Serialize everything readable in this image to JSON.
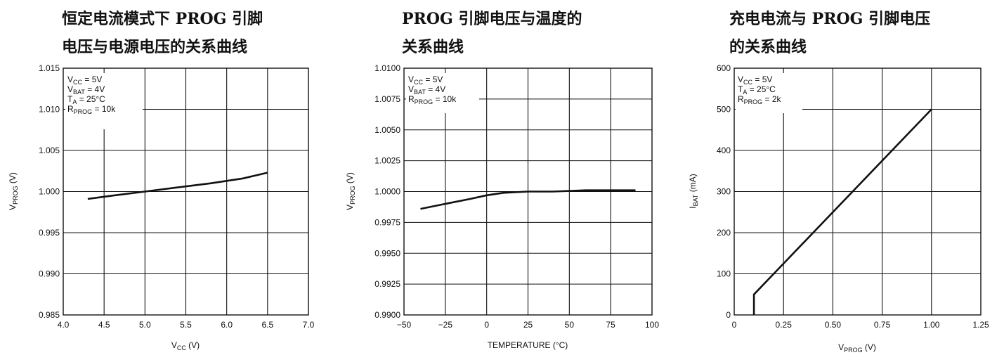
{
  "chart_data": [
    {
      "type": "line",
      "title_line1": "恒定电流模式下 PROG 引脚",
      "title_line2": "电压与电源电压的关系曲线",
      "ylabel_main": "V",
      "ylabel_sub": "PROG",
      "ylabel_unit": " (V)",
      "xlabel_main": "V",
      "xlabel_sub": "CC",
      "xlabel_unit": " (V)",
      "xlim": [
        4.0,
        7.0
      ],
      "ylim": [
        0.985,
        1.015
      ],
      "xticks": [
        "4.0",
        "4.5",
        "5.0",
        "5.5",
        "6.0",
        "6.5",
        "7.0"
      ],
      "yticks": [
        "1.015",
        "1.010",
        "1.005",
        "1.000",
        "0.995",
        "0.990",
        "0.985"
      ],
      "grid": true,
      "conditions": [
        {
          "main": "V",
          "sub": "CC",
          "rest": " = 5V"
        },
        {
          "main": "V",
          "sub": "BAT",
          "rest": " = 4V"
        },
        {
          "main": "T",
          "sub": "A",
          "rest": " = 25°C"
        },
        {
          "main": "R",
          "sub": "PROG",
          "rest": " = 10k"
        }
      ],
      "series": [
        {
          "x": [
            4.3,
            4.6,
            5.0,
            5.4,
            5.8,
            6.2,
            6.5
          ],
          "y": [
            0.9991,
            0.9995,
            1.0,
            1.0005,
            1.001,
            1.0016,
            1.0023
          ]
        }
      ]
    },
    {
      "type": "line",
      "title_line1": "PROG 引脚电压与温度的",
      "title_line2": "关系曲线",
      "ylabel_main": "V",
      "ylabel_sub": "PROG",
      "ylabel_unit": " (V)",
      "xlabel_main": "TEMPERATURE (°C)",
      "xlabel_sub": "",
      "xlabel_unit": "",
      "xlim": [
        -50,
        100
      ],
      "ylim": [
        0.99,
        1.01
      ],
      "xticks": [
        "−50",
        "−25",
        "0",
        "25",
        "50",
        "75",
        "100"
      ],
      "yticks": [
        "1.0100",
        "1.0075",
        "1.0050",
        "1.0025",
        "1.0000",
        "0.9975",
        "0.9950",
        "0.9925",
        "0.9900"
      ],
      "grid": true,
      "conditions": [
        {
          "main": "V",
          "sub": "CC",
          "rest": " = 5V"
        },
        {
          "main": "V",
          "sub": "BAT",
          "rest": " = 4V"
        },
        {
          "main": "R",
          "sub": "PROG",
          "rest": " = 10k"
        }
      ],
      "series": [
        {
          "x": [
            -40,
            -25,
            -10,
            0,
            10,
            25,
            40,
            60,
            90
          ],
          "y": [
            0.9986,
            0.999,
            0.9994,
            0.9997,
            0.9999,
            1.0,
            1.0,
            1.0001,
            1.0001
          ]
        }
      ]
    },
    {
      "type": "line",
      "title_line1": "充电电流与 PROG 引脚电压",
      "title_line2": "的关系曲线",
      "ylabel_main": "I",
      "ylabel_sub": "BAT",
      "ylabel_unit": " (mA)",
      "xlabel_main": "V",
      "xlabel_sub": "PROG",
      "xlabel_unit": " (V)",
      "xlim": [
        0,
        1.25
      ],
      "ylim": [
        0,
        600
      ],
      "xticks": [
        "0",
        "0.25",
        "0.50",
        "0.75",
        "1.00",
        "1.25"
      ],
      "yticks": [
        "600",
        "500",
        "400",
        "300",
        "200",
        "100",
        "0"
      ],
      "grid": true,
      "conditions": [
        {
          "main": "V",
          "sub": "CC",
          "rest": " = 5V"
        },
        {
          "main": "T",
          "sub": "A",
          "rest": " = 25°C"
        },
        {
          "main": "R",
          "sub": "PROG",
          "rest": " = 2k"
        }
      ],
      "series": [
        {
          "x": [
            0.1,
            0.1,
            1.0
          ],
          "y": [
            0,
            50,
            500
          ]
        }
      ]
    }
  ]
}
